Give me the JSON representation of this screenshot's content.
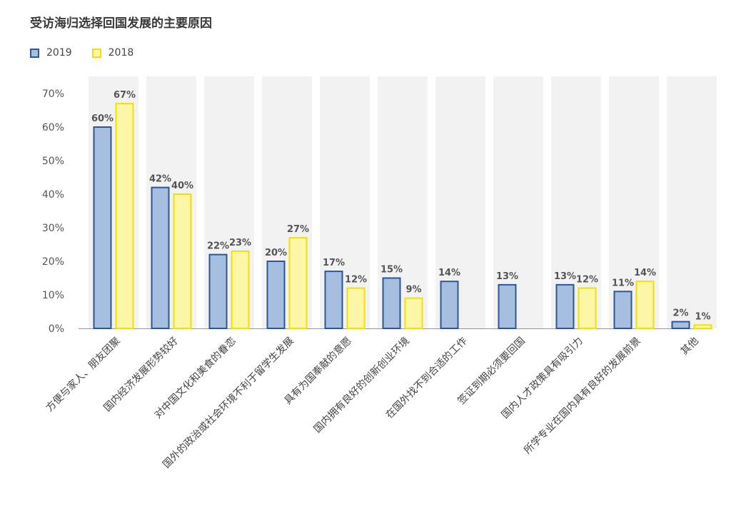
{
  "chart_data": {
    "type": "bar",
    "title": "受访海归选择回国发展的主要原因",
    "legend_position": "top-left",
    "ylim": [
      0,
      70
    ],
    "yticks": [
      "70%",
      "60%",
      "50%",
      "40%",
      "30%",
      "20%",
      "10%",
      "0%"
    ],
    "ytick_values": [
      70,
      60,
      50,
      40,
      30,
      20,
      10,
      0
    ],
    "categories": [
      "方便与家人、朋友团聚",
      "国内经济发展形势较好",
      "对中国文化和美食的眷恋",
      "国外的政治或社会环境不利于留学生发展",
      "具有为国奉献的意愿",
      "国内拥有良好的创新创业环境",
      "在国外找不到合适的工作",
      "签证到期必须要回国",
      "国内人才政策具有吸引力",
      "所学专业在国内具有良好的发展前景",
      "其他"
    ],
    "series": [
      {
        "name": "2019",
        "values": [
          60,
          42,
          22,
          20,
          17,
          15,
          14,
          13,
          13,
          11,
          2
        ],
        "labels": [
          "60%",
          "42%",
          "22%",
          "20%",
          "17%",
          "15%",
          "14%",
          "13%",
          "13%",
          "11%",
          "2%"
        ],
        "fill": "#a6bfe0",
        "stroke": "#2f5597"
      },
      {
        "name": "2018",
        "values": [
          67,
          40,
          23,
          27,
          12,
          9,
          null,
          null,
          12,
          14,
          1
        ],
        "labels": [
          "67%",
          "40%",
          "23%",
          "27%",
          "12%",
          "9%",
          null,
          null,
          "12%",
          "14%",
          "1%"
        ],
        "fill": "#fff7a8",
        "stroke": "#f2e000"
      }
    ],
    "column_band_color": "#f2f2f2"
  }
}
